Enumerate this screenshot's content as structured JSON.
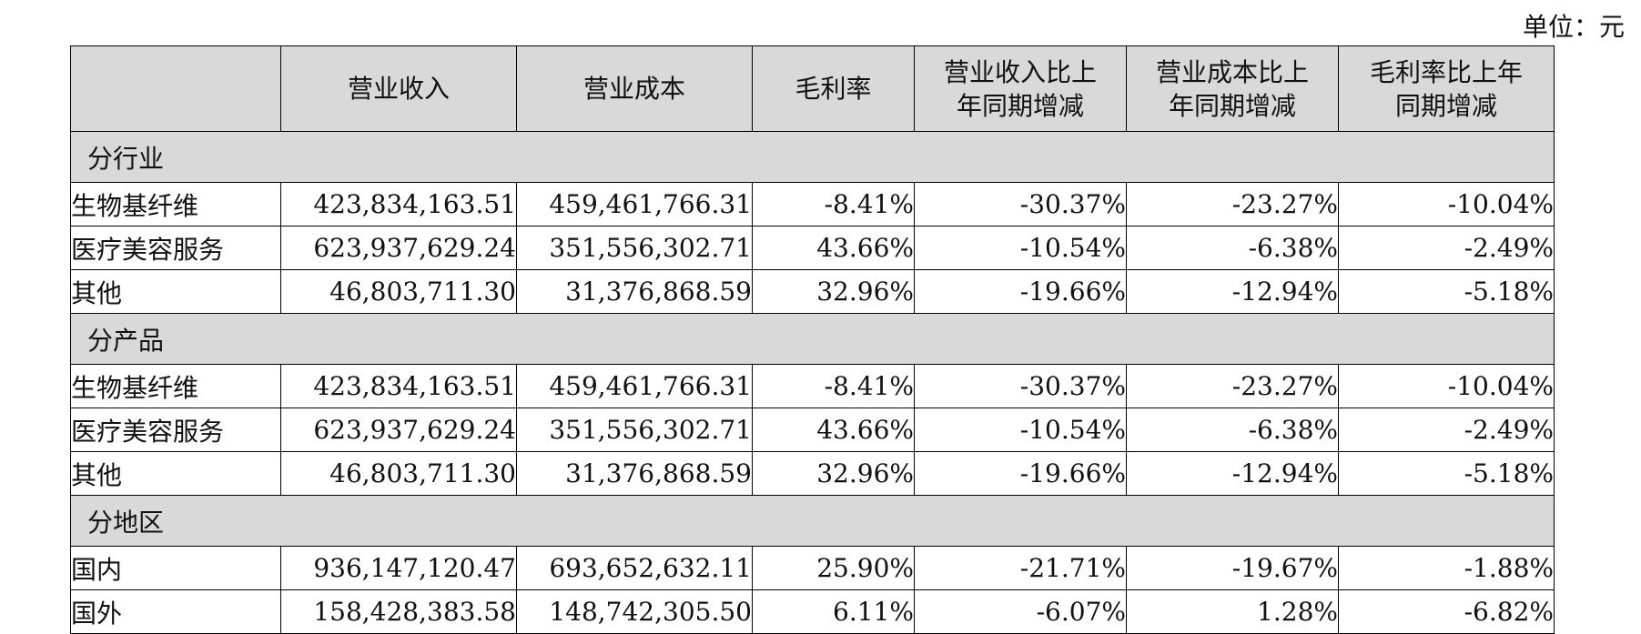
{
  "unit_label": "单位：元",
  "table": {
    "headers": [
      "",
      "营业收入",
      "营业成本",
      "毛利率",
      "营业收入比上年同期增减",
      "营业成本比上年同期增减",
      "毛利率比上年同期增减"
    ],
    "header_lines": [
      [
        ""
      ],
      [
        "营业收入"
      ],
      [
        "营业成本"
      ],
      [
        "毛利率"
      ],
      [
        "营业收入比上",
        "年同期增减"
      ],
      [
        "营业成本比上",
        "年同期增减"
      ],
      [
        "毛利率比上年",
        "同期增减"
      ]
    ],
    "sections": [
      {
        "title": "分行业",
        "rows": [
          [
            "生物基纤维",
            "423,834,163.51",
            "459,461,766.31",
            "-8.41%",
            "-30.37%",
            "-23.27%",
            "-10.04%"
          ],
          [
            "医疗美容服务",
            "623,937,629.24",
            "351,556,302.71",
            "43.66%",
            "-10.54%",
            "-6.38%",
            "-2.49%"
          ],
          [
            "其他",
            "46,803,711.30",
            "31,376,868.59",
            "32.96%",
            "-19.66%",
            "-12.94%",
            "-5.18%"
          ]
        ]
      },
      {
        "title": "分产品",
        "rows": [
          [
            "生物基纤维",
            "423,834,163.51",
            "459,461,766.31",
            "-8.41%",
            "-30.37%",
            "-23.27%",
            "-10.04%"
          ],
          [
            "医疗美容服务",
            "623,937,629.24",
            "351,556,302.71",
            "43.66%",
            "-10.54%",
            "-6.38%",
            "-2.49%"
          ],
          [
            "其他",
            "46,803,711.30",
            "31,376,868.59",
            "32.96%",
            "-19.66%",
            "-12.94%",
            "-5.18%"
          ]
        ]
      },
      {
        "title": "分地区",
        "rows": [
          [
            "国内",
            "936,147,120.47",
            "693,652,632.11",
            "25.90%",
            "-21.71%",
            "-19.67%",
            "-1.88%"
          ],
          [
            "国外",
            "158,428,383.58",
            "148,742,305.50",
            "6.11%",
            "-6.07%",
            "1.28%",
            "-6.82%"
          ]
        ]
      }
    ]
  },
  "colors": {
    "header_bg": "#d9d9d9",
    "border": "#000000"
  }
}
